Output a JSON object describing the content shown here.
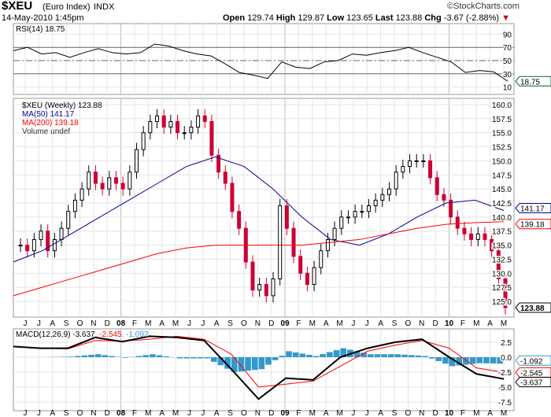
{
  "header": {
    "symbol": "$XEU",
    "name": "(Euro Index)",
    "exchange": "INDX",
    "date": "14-May-2010 1:45pm",
    "brand": "©StockCharts.com",
    "open_label": "Open",
    "open": "129.74",
    "high_label": "High",
    "high": "129.87",
    "low_label": "Low",
    "low": "123.65",
    "last_label": "Last",
    "last": "123.88",
    "chg_label": "Chg",
    "chg": "-3.67 (-2.88%)"
  },
  "chart_data": [
    {
      "type": "line",
      "title": "RSI(14) 18.75",
      "legend": "top-left",
      "ylim": [
        0,
        100
      ],
      "yticks": [
        "90",
        "70",
        "50",
        "30",
        "10"
      ],
      "last_tag": "18.75",
      "levels": [
        70,
        50,
        30
      ],
      "values": [
        65,
        70,
        60,
        62,
        55,
        62,
        68,
        62,
        60,
        62,
        75,
        72,
        65,
        60,
        57,
        45,
        32,
        28,
        23,
        48,
        40,
        38,
        48,
        50,
        60,
        58,
        62,
        65,
        70,
        62,
        55,
        48,
        32,
        35,
        33,
        18.75
      ]
    },
    {
      "type": "candlestick",
      "legend": "top-left",
      "ylim": [
        124,
        161.5
      ],
      "legend_entries": [
        "$XEU (Weekly) 123.88",
        "MA(50) 141.17",
        "MA(200) 139.18",
        "Volume undef"
      ],
      "yticks": [
        "160.0",
        "157.5",
        "155.0",
        "152.5",
        "150.0",
        "147.5",
        "145.0",
        "142.5",
        "140.0",
        "137.5",
        "135.0",
        "132.5",
        "130.0",
        "127.5",
        "125.0"
      ],
      "tags": {
        "ma50": "141.17",
        "ma200": "139.18",
        "last": "123.88"
      },
      "closes": [
        135,
        134,
        136,
        137.5,
        134,
        136,
        138,
        141,
        143,
        145,
        148,
        146,
        145,
        147,
        146,
        145,
        148,
        152,
        155,
        157,
        158,
        156,
        157,
        155,
        155,
        156,
        158,
        157,
        151,
        148,
        146,
        141,
        138,
        132,
        127,
        128,
        126,
        129,
        142,
        138,
        133,
        130,
        128,
        131,
        134,
        136,
        138,
        140,
        140,
        141,
        141,
        142,
        143,
        144,
        145,
        148,
        149,
        150,
        150,
        150,
        147,
        144,
        143,
        140,
        138,
        137,
        136,
        137,
        136,
        134,
        129,
        123.88
      ],
      "ma50": [
        132,
        134,
        137,
        140,
        143,
        146,
        149,
        150.7,
        149,
        145,
        140,
        136,
        135,
        137,
        140,
        142.5,
        143,
        141.17
      ],
      "ma200": [
        126,
        127.5,
        129,
        130.5,
        132,
        133.5,
        134.5,
        135,
        135,
        135,
        135,
        135.5,
        136,
        137,
        138,
        138.7,
        139,
        139.18
      ],
      "xticks": [
        "J",
        "J",
        "A",
        "S",
        "O",
        "N",
        "D",
        "08",
        "F",
        "M",
        "A",
        "M",
        "J",
        "J",
        "A",
        "S",
        "O",
        "N",
        "D",
        "09",
        "F",
        "M",
        "A",
        "M",
        "J",
        "J",
        "A",
        "S",
        "O",
        "N",
        "D",
        "10",
        "F",
        "M",
        "A",
        "M"
      ]
    },
    {
      "type": "line",
      "title": "MACD(12,26,9)",
      "legend_values": [
        "-3.637",
        ", -2.545",
        ", -1.092"
      ],
      "ylim": [
        -8,
        4.5
      ],
      "yticks": [
        "2.5",
        "0.0",
        "-2.5",
        "-5.0",
        "-7.5"
      ],
      "tags": {
        "macd": "-3.637",
        "signal": "-2.545",
        "hist": "-1.092"
      },
      "macd": [
        1.8,
        1.5,
        1.5,
        3.3,
        2.6,
        3.5,
        3.3,
        2.8,
        -2,
        -7,
        -3.5,
        -3.8,
        0,
        1.5,
        2.5,
        3.0,
        0,
        -2.8,
        -3.637
      ],
      "signal": [
        1.8,
        1.5,
        1.4,
        2.8,
        2.7,
        3,
        3.5,
        3,
        0.5,
        -5,
        -4.5,
        -4.0,
        -1.5,
        1,
        2,
        2.8,
        1.5,
        -1.8,
        -2.545
      ]
    }
  ],
  "colors": {
    "up": "#000000",
    "down": "#cc0033",
    "ma50": "#000099",
    "ma200": "#ff0000",
    "hist": "#3399cc",
    "rsi_ob": "#669966",
    "rsi_os": "#996666"
  }
}
